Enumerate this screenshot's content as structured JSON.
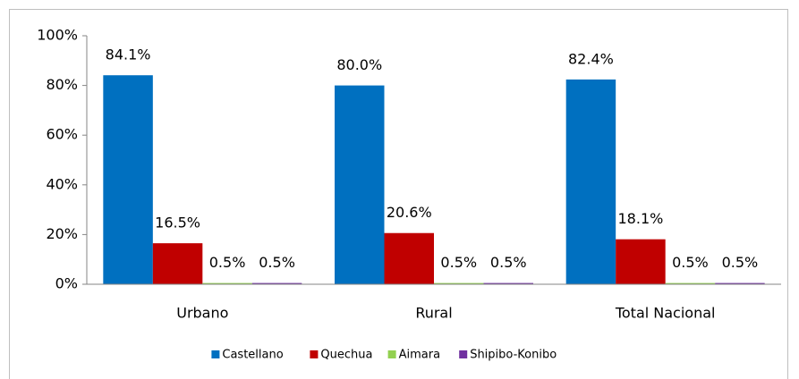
{
  "chart_data": {
    "type": "bar",
    "categories": [
      "Urbano",
      "Rural",
      "Total Nacional"
    ],
    "series": [
      {
        "name": "Castellano",
        "color": "#0070c0",
        "values": [
          84.1,
          80.0,
          82.4
        ],
        "value_labels": [
          "84.1%",
          "80.0%",
          "82.4%"
        ]
      },
      {
        "name": "Quechua",
        "color": "#c00000",
        "values": [
          16.5,
          20.6,
          18.1
        ],
        "value_labels": [
          "16.5%",
          "20.6%",
          "18.1%"
        ]
      },
      {
        "name": "Aimara",
        "color": "#92d050",
        "values": [
          0.5,
          0.5,
          0.5
        ],
        "value_labels": [
          "0.5%",
          "0.5%",
          "0.5%"
        ]
      },
      {
        "name": "Shipibo-Konibo",
        "color": "#7030a0",
        "values": [
          0.5,
          0.5,
          0.5
        ],
        "value_labels": [
          "0.5%",
          "0.5%",
          "0.5%"
        ]
      }
    ],
    "ylim": [
      0,
      100
    ],
    "yticks": [
      {
        "value": 0,
        "label": "0%"
      },
      {
        "value": 20,
        "label": "20%"
      },
      {
        "value": 40,
        "label": "40%"
      },
      {
        "value": 60,
        "label": "60%"
      },
      {
        "value": 80,
        "label": "80%"
      },
      {
        "value": 100,
        "label": "100%"
      }
    ],
    "grid": false,
    "legend": "bottom"
  }
}
